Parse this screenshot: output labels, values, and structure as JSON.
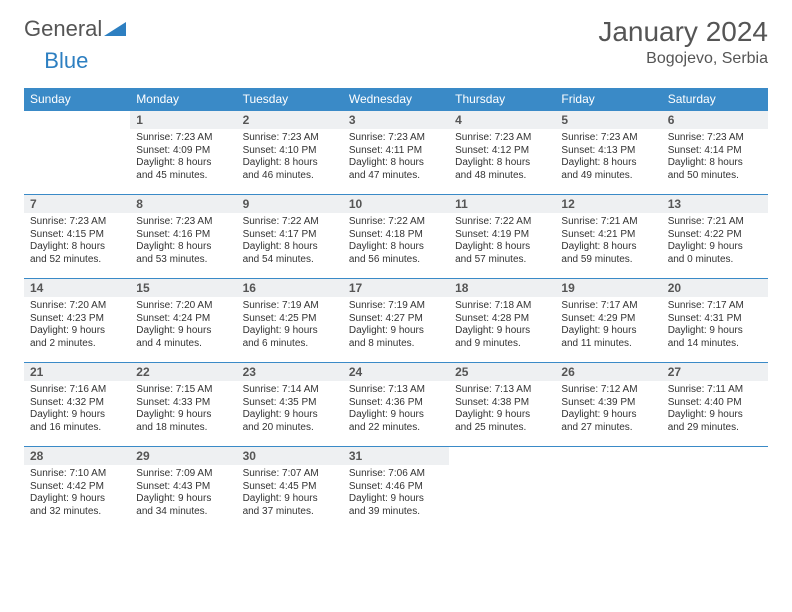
{
  "brand": {
    "part1": "General",
    "part2": "Blue"
  },
  "title": {
    "month": "January 2024",
    "location": "Bogojevo, Serbia"
  },
  "style": {
    "header_bg": "#3a8ac7",
    "header_fg": "#ffffff",
    "daynum_bg": "#eef0f2",
    "border_color": "#3a8ac7",
    "page_bg": "#ffffff",
    "text_color": "#333333",
    "title_color": "#555555"
  },
  "weekdays": [
    "Sunday",
    "Monday",
    "Tuesday",
    "Wednesday",
    "Thursday",
    "Friday",
    "Saturday"
  ],
  "weeks": [
    [
      null,
      {
        "n": "1",
        "sr": "7:23 AM",
        "ss": "4:09 PM",
        "dl": "8 hours and 45 minutes."
      },
      {
        "n": "2",
        "sr": "7:23 AM",
        "ss": "4:10 PM",
        "dl": "8 hours and 46 minutes."
      },
      {
        "n": "3",
        "sr": "7:23 AM",
        "ss": "4:11 PM",
        "dl": "8 hours and 47 minutes."
      },
      {
        "n": "4",
        "sr": "7:23 AM",
        "ss": "4:12 PM",
        "dl": "8 hours and 48 minutes."
      },
      {
        "n": "5",
        "sr": "7:23 AM",
        "ss": "4:13 PM",
        "dl": "8 hours and 49 minutes."
      },
      {
        "n": "6",
        "sr": "7:23 AM",
        "ss": "4:14 PM",
        "dl": "8 hours and 50 minutes."
      }
    ],
    [
      {
        "n": "7",
        "sr": "7:23 AM",
        "ss": "4:15 PM",
        "dl": "8 hours and 52 minutes."
      },
      {
        "n": "8",
        "sr": "7:23 AM",
        "ss": "4:16 PM",
        "dl": "8 hours and 53 minutes."
      },
      {
        "n": "9",
        "sr": "7:22 AM",
        "ss": "4:17 PM",
        "dl": "8 hours and 54 minutes."
      },
      {
        "n": "10",
        "sr": "7:22 AM",
        "ss": "4:18 PM",
        "dl": "8 hours and 56 minutes."
      },
      {
        "n": "11",
        "sr": "7:22 AM",
        "ss": "4:19 PM",
        "dl": "8 hours and 57 minutes."
      },
      {
        "n": "12",
        "sr": "7:21 AM",
        "ss": "4:21 PM",
        "dl": "8 hours and 59 minutes."
      },
      {
        "n": "13",
        "sr": "7:21 AM",
        "ss": "4:22 PM",
        "dl": "9 hours and 0 minutes."
      }
    ],
    [
      {
        "n": "14",
        "sr": "7:20 AM",
        "ss": "4:23 PM",
        "dl": "9 hours and 2 minutes."
      },
      {
        "n": "15",
        "sr": "7:20 AM",
        "ss": "4:24 PM",
        "dl": "9 hours and 4 minutes."
      },
      {
        "n": "16",
        "sr": "7:19 AM",
        "ss": "4:25 PM",
        "dl": "9 hours and 6 minutes."
      },
      {
        "n": "17",
        "sr": "7:19 AM",
        "ss": "4:27 PM",
        "dl": "9 hours and 8 minutes."
      },
      {
        "n": "18",
        "sr": "7:18 AM",
        "ss": "4:28 PM",
        "dl": "9 hours and 9 minutes."
      },
      {
        "n": "19",
        "sr": "7:17 AM",
        "ss": "4:29 PM",
        "dl": "9 hours and 11 minutes."
      },
      {
        "n": "20",
        "sr": "7:17 AM",
        "ss": "4:31 PM",
        "dl": "9 hours and 14 minutes."
      }
    ],
    [
      {
        "n": "21",
        "sr": "7:16 AM",
        "ss": "4:32 PM",
        "dl": "9 hours and 16 minutes."
      },
      {
        "n": "22",
        "sr": "7:15 AM",
        "ss": "4:33 PM",
        "dl": "9 hours and 18 minutes."
      },
      {
        "n": "23",
        "sr": "7:14 AM",
        "ss": "4:35 PM",
        "dl": "9 hours and 20 minutes."
      },
      {
        "n": "24",
        "sr": "7:13 AM",
        "ss": "4:36 PM",
        "dl": "9 hours and 22 minutes."
      },
      {
        "n": "25",
        "sr": "7:13 AM",
        "ss": "4:38 PM",
        "dl": "9 hours and 25 minutes."
      },
      {
        "n": "26",
        "sr": "7:12 AM",
        "ss": "4:39 PM",
        "dl": "9 hours and 27 minutes."
      },
      {
        "n": "27",
        "sr": "7:11 AM",
        "ss": "4:40 PM",
        "dl": "9 hours and 29 minutes."
      }
    ],
    [
      {
        "n": "28",
        "sr": "7:10 AM",
        "ss": "4:42 PM",
        "dl": "9 hours and 32 minutes."
      },
      {
        "n": "29",
        "sr": "7:09 AM",
        "ss": "4:43 PM",
        "dl": "9 hours and 34 minutes."
      },
      {
        "n": "30",
        "sr": "7:07 AM",
        "ss": "4:45 PM",
        "dl": "9 hours and 37 minutes."
      },
      {
        "n": "31",
        "sr": "7:06 AM",
        "ss": "4:46 PM",
        "dl": "9 hours and 39 minutes."
      },
      null,
      null,
      null
    ]
  ],
  "labels": {
    "sunrise": "Sunrise:",
    "sunset": "Sunset:",
    "daylight": "Daylight:"
  }
}
